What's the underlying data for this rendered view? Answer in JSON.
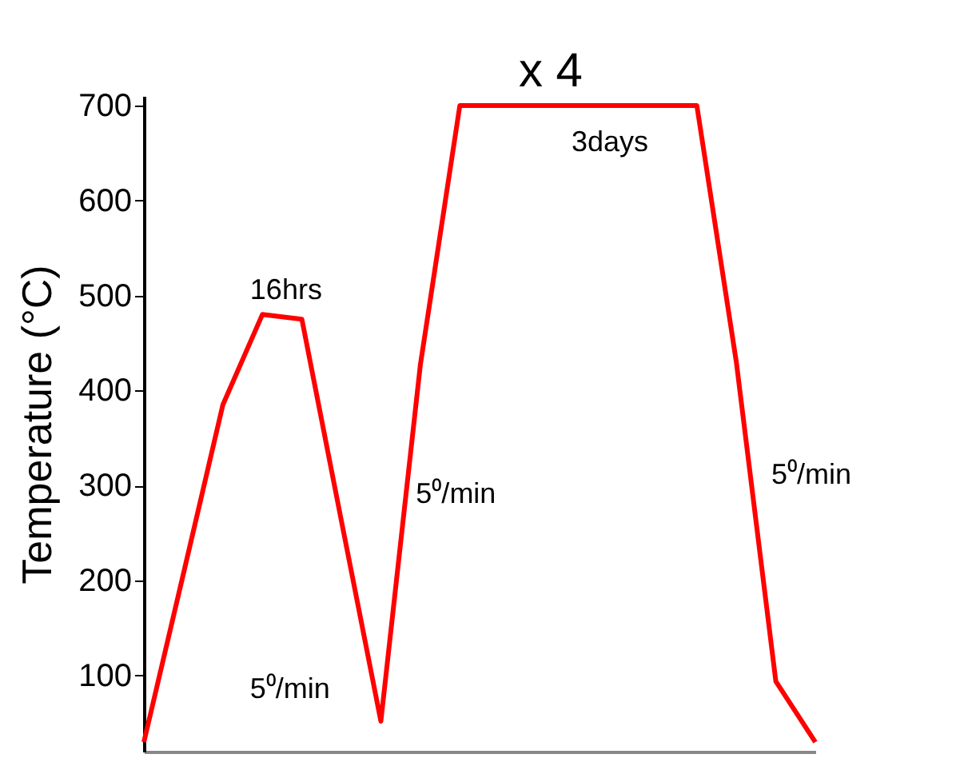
{
  "chart_data": {
    "type": "line",
    "ylabel": "Temperature (°C)",
    "categories": [
      null,
      null,
      null,
      null,
      null,
      null,
      null,
      null,
      null,
      null,
      null,
      null,
      null,
      null,
      null,
      null,
      null,
      null
    ],
    "series": [
      {
        "color": "#ff0000",
        "values": [
          30,
          207,
          385,
          480,
          475,
          263,
          52,
          427,
          700,
          700,
          700,
          700,
          700,
          700,
          700,
          430,
          94,
          30
        ]
      }
    ],
    "ylim": [
      20,
      710
    ],
    "yticks": [
      100,
      200,
      300,
      400,
      500,
      600,
      700
    ],
    "tick_labels": "y",
    "grid": false,
    "annotations": [
      "x 4",
      "16hrs",
      "3days",
      "5⁰/min",
      "5⁰/min",
      "5⁰/min"
    ]
  }
}
